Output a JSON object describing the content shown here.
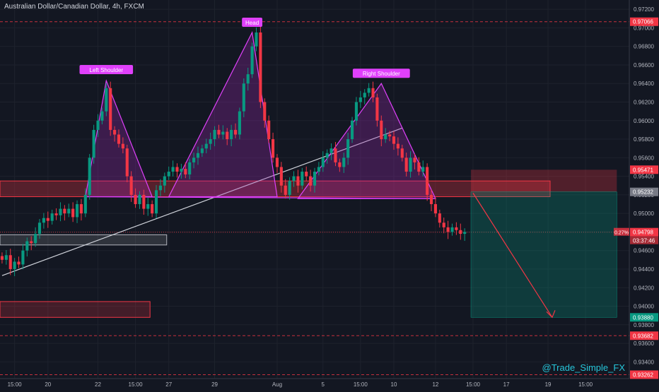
{
  "chart_data": {
    "type": "candlestick",
    "title": "Australian Dollar/Canadian Dollar, 4h, FXCM",
    "watermark": "@Trade_Simple_FX",
    "ylim": [
      0.9322,
      0.973
    ],
    "y_ticks": [
      "0.97200",
      "0.97000",
      "0.96800",
      "0.96600",
      "0.96400",
      "0.96200",
      "0.96000",
      "0.95800",
      "0.95600",
      "0.95400",
      "0.95200",
      "0.95000",
      "0.94800",
      "0.94600",
      "0.94400",
      "0.94200",
      "0.94000",
      "0.93800",
      "0.93600",
      "0.93400"
    ],
    "y_tick_values": [
      0.972,
      0.97,
      0.968,
      0.966,
      0.964,
      0.962,
      0.96,
      0.958,
      0.956,
      0.954,
      0.952,
      0.95,
      0.948,
      0.946,
      0.944,
      0.942,
      0.94,
      0.938,
      0.936,
      0.934
    ],
    "x_ticks": [
      {
        "label": "15:00",
        "bar": 3
      },
      {
        "label": "20",
        "bar": 11
      },
      {
        "label": "22",
        "bar": 23
      },
      {
        "label": "15:00",
        "bar": 32
      },
      {
        "label": "27",
        "bar": 40
      },
      {
        "label": "29",
        "bar": 51
      },
      {
        "label": "Aug",
        "bar": 66
      },
      {
        "label": "5",
        "bar": 77
      },
      {
        "label": "15:00",
        "bar": 86
      },
      {
        "label": "10",
        "bar": 94
      },
      {
        "label": "12",
        "bar": 104
      },
      {
        "label": "15:00",
        "bar": 113
      },
      {
        "label": "17",
        "bar": 121
      },
      {
        "label": "19",
        "bar": 131
      },
      {
        "label": "15:00",
        "bar": 140
      }
    ],
    "bar_count": 151,
    "candles_close": [
      0.945,
      0.9455,
      0.944,
      0.9448,
      0.9445,
      0.946,
      0.947,
      0.9468,
      0.9478,
      0.949,
      0.9495,
      0.9492,
      0.95,
      0.9498,
      0.9505,
      0.95,
      0.9505,
      0.9496,
      0.951,
      0.95,
      0.952,
      0.956,
      0.959,
      0.96,
      0.961,
      0.9635,
      0.959,
      0.9585,
      0.9575,
      0.957,
      0.954,
      0.952,
      0.951,
      0.952,
      0.9505,
      0.951,
      0.95,
      0.9525,
      0.953,
      0.954,
      0.9545,
      0.955,
      0.9545,
      0.9548,
      0.9542,
      0.9555,
      0.956,
      0.9565,
      0.957,
      0.9575,
      0.958,
      0.959,
      0.9585,
      0.9588,
      0.958,
      0.959,
      0.9585,
      0.961,
      0.964,
      0.965,
      0.968,
      0.9695,
      0.962,
      0.96,
      0.958,
      0.956,
      0.955,
      0.953,
      0.952,
      0.9535,
      0.954,
      0.953,
      0.9545,
      0.954,
      0.953,
      0.9545,
      0.955,
      0.956,
      0.9565,
      0.957,
      0.9555,
      0.955,
      0.956,
      0.958,
      0.96,
      0.962,
      0.9625,
      0.963,
      0.9635,
      0.9625,
      0.96,
      0.958,
      0.9585,
      0.9583,
      0.9575,
      0.957,
      0.956,
      0.9545,
      0.956,
      0.9555,
      0.9545,
      0.955,
      0.952,
      0.951,
      0.95,
      0.949,
      0.9485,
      0.948,
      0.9485,
      0.9482,
      0.9478,
      0.948
    ],
    "price_tags": [
      {
        "label": "0.97066",
        "value": 0.97066,
        "color": "#f23645",
        "line": "dashed"
      },
      {
        "label": "0.95471",
        "value": 0.95471,
        "color": "#f23645"
      },
      {
        "label": "0.95232",
        "value": 0.95232,
        "color": "#787b86"
      },
      {
        "label": "0.94798",
        "value": 0.94798,
        "color": "#f23645",
        "line": "dotted"
      },
      {
        "label": "0.93880",
        "value": 0.9388,
        "color": "#089981"
      },
      {
        "label": "0.93682",
        "value": 0.93682,
        "color": "#f23645",
        "line": "dashed"
      },
      {
        "label": "0.93262",
        "value": 0.93262,
        "color": "#f23645",
        "line": "dashed"
      }
    ],
    "current_price": {
      "value": 0.94798,
      "change": "0.27%",
      "countdown": "03:37:46"
    },
    "pattern": {
      "name": "head-and-shoulders",
      "labels": [
        {
          "text": "Left Shoulder",
          "bar": 25,
          "value": 0.9644
        },
        {
          "text": "Head",
          "bar": 60,
          "value": 0.9695
        },
        {
          "text": "Right Shoulder",
          "bar": 91,
          "value": 0.964
        }
      ],
      "color": "#e040fb"
    },
    "zones": [
      {
        "kind": "resistance",
        "from_bar": 0,
        "to_bar": 132,
        "low": 0.9518,
        "high": 0.9535
      },
      {
        "kind": "support",
        "from_bar": 0,
        "to_bar": 40,
        "low": 0.9466,
        "high": 0.9477
      },
      {
        "kind": "demand",
        "from_bar": 0,
        "to_bar": 36,
        "low": 0.9388,
        "high": 0.9405
      }
    ],
    "trade": {
      "entry": 0.95232,
      "stop": 0.95471,
      "target": 0.9388,
      "from_bar": 113,
      "to_bar": 148
    },
    "grid": true
  }
}
